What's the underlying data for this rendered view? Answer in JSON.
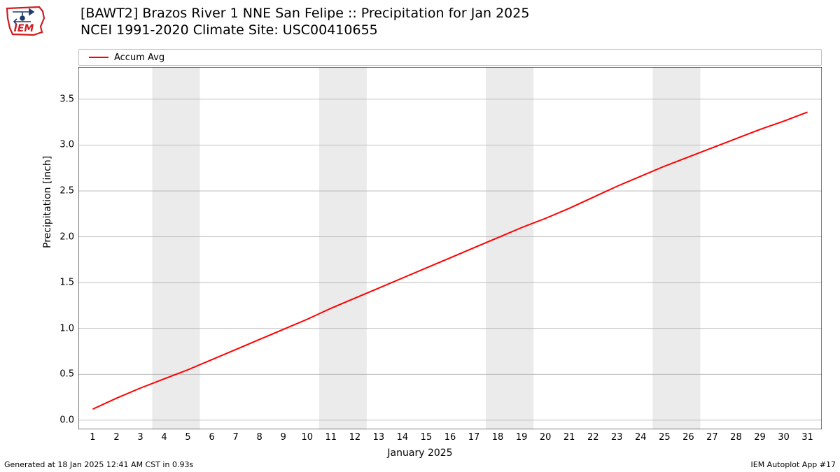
{
  "logo": {
    "text": "IEM",
    "outline_color": "#d01c1f",
    "icon_color": "#1f3a6e"
  },
  "title": {
    "line1": "[BAWT2] Brazos River 1 NNE San Felipe :: Precipitation for Jan 2025",
    "line2": "NCEI 1991-2020 Climate Site: USC00410655"
  },
  "legend": {
    "items": [
      {
        "label": "Accum Avg",
        "color": "#ff0000"
      }
    ]
  },
  "chart": {
    "type": "line",
    "background_color": "#ffffff",
    "border_color": "#000000",
    "grid_color": "#b0b0b0",
    "weekend_band_color": "#ebebeb",
    "xlabel": "January 2025",
    "ylabel": "Precipitation [inch]",
    "label_fontsize": 14,
    "tick_fontsize": 13,
    "xlim": [
      0.4,
      31.6
    ],
    "ylim": [
      -0.1,
      3.85
    ],
    "xticks": [
      1,
      2,
      3,
      4,
      5,
      6,
      7,
      8,
      9,
      10,
      11,
      12,
      13,
      14,
      15,
      16,
      17,
      18,
      19,
      20,
      21,
      22,
      23,
      24,
      25,
      26,
      27,
      28,
      29,
      30,
      31
    ],
    "yticks": [
      0.0,
      0.5,
      1.0,
      1.5,
      2.0,
      2.5,
      3.0,
      3.5
    ],
    "weekend_bands": [
      [
        3.5,
        5.5
      ],
      [
        10.5,
        12.5
      ],
      [
        17.5,
        19.5
      ],
      [
        24.5,
        26.5
      ]
    ],
    "series": [
      {
        "name": "Accum Avg",
        "color": "#ff0000",
        "line_width": 2,
        "x": [
          1,
          2,
          3,
          4,
          5,
          6,
          7,
          8,
          9,
          10,
          11,
          12,
          13,
          14,
          15,
          16,
          17,
          18,
          19,
          20,
          21,
          22,
          23,
          24,
          25,
          26,
          27,
          28,
          29,
          30,
          31
        ],
        "y": [
          0.12,
          0.24,
          0.35,
          0.45,
          0.55,
          0.66,
          0.77,
          0.88,
          0.99,
          1.1,
          1.22,
          1.33,
          1.44,
          1.55,
          1.66,
          1.77,
          1.88,
          1.99,
          2.1,
          2.2,
          2.31,
          2.43,
          2.55,
          2.66,
          2.77,
          2.87,
          2.97,
          3.07,
          3.17,
          3.26,
          3.36
        ]
      }
    ]
  },
  "footer": {
    "left": "Generated at 18 Jan 2025 12:41 AM CST in 0.93s",
    "right": "IEM Autoplot App #17"
  }
}
